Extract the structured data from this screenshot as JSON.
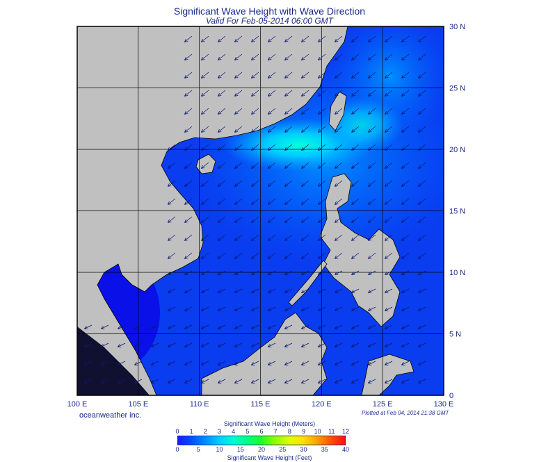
{
  "header": {
    "title": "Significant Wave Height with Wave Direction",
    "subtitle": "Valid For Feb-05-2014 06:00 GMT"
  },
  "axes": {
    "x_ticks": [
      "100 E",
      "105 E",
      "110 E",
      "115 E",
      "120 E",
      "125 E",
      "130 E"
    ],
    "y_ticks": [
      "0",
      "5 N",
      "10 N",
      "15 N",
      "20 N",
      "25 N",
      "30 N"
    ],
    "lon_range": [
      100,
      130
    ],
    "lat_range": [
      0,
      30
    ],
    "grid": true
  },
  "footer": {
    "brand": "oceanweather inc.",
    "plotted": "Plotted at Feb 04, 2014 21:38 GMT"
  },
  "colorbar": {
    "title_meters": "Significant Wave Height (Meters)",
    "title_feet": "Significant Wave Height (Feet)",
    "meters_ticks": [
      "0",
      "1",
      "2",
      "3",
      "4",
      "5",
      "6",
      "7",
      "8",
      "9",
      "10",
      "11",
      "12"
    ],
    "feet_ticks": [
      "0",
      "5",
      "10",
      "15",
      "20",
      "25",
      "30",
      "35",
      "40"
    ],
    "colors": [
      "#1a1aff",
      "#0050ff",
      "#0090ff",
      "#00d0ff",
      "#00ffd0",
      "#00ff80",
      "#20ff20",
      "#90ff00",
      "#e0ff00",
      "#ffe000",
      "#ffa000",
      "#ff5000",
      "#ff1010"
    ]
  },
  "map_colors": {
    "land": "#c0c0c0",
    "border": "#000000",
    "deep_water": "#0a0af0",
    "grid": "#000000"
  }
}
